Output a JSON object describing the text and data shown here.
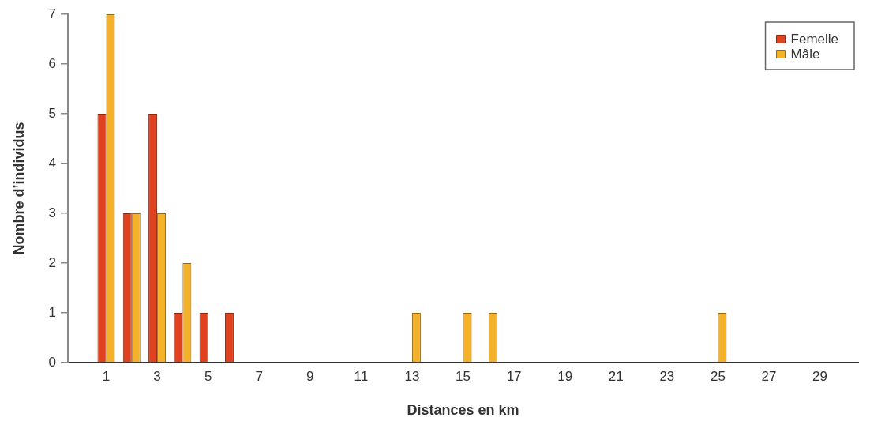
{
  "chart_data": {
    "type": "bar",
    "xlabel": "Distances en km",
    "ylabel": "Nombre d’individus",
    "x": [
      1,
      2,
      3,
      4,
      5,
      6,
      7,
      8,
      9,
      10,
      11,
      12,
      13,
      14,
      15,
      16,
      17,
      18,
      19,
      20,
      21,
      22,
      23,
      24,
      25,
      26,
      27,
      28,
      29
    ],
    "xlim": [
      -0.5,
      30.5
    ],
    "xticks": [
      1,
      3,
      5,
      7,
      9,
      11,
      13,
      15,
      17,
      19,
      21,
      23,
      25,
      27,
      29
    ],
    "ylim": [
      0,
      7
    ],
    "yticks": [
      0,
      1,
      2,
      3,
      4,
      5,
      6,
      7
    ],
    "series": [
      {
        "name": "Femelle",
        "color": "#e0421f",
        "values": [
          5,
          3,
          5,
          1,
          1,
          1,
          0,
          0,
          0,
          0,
          0,
          0,
          0,
          0,
          0,
          0,
          0,
          0,
          0,
          0,
          0,
          0,
          0,
          0,
          0,
          0,
          0,
          0,
          0
        ]
      },
      {
        "name": "Mâle",
        "color": "#f4b12a",
        "values": [
          7,
          3,
          3,
          2,
          0,
          0,
          0,
          0,
          0,
          0,
          0,
          0,
          1,
          0,
          1,
          1,
          0,
          0,
          0,
          0,
          0,
          0,
          0,
          0,
          1,
          0,
          0,
          0,
          0
        ]
      }
    ],
    "grid": false,
    "legend": "top right"
  }
}
